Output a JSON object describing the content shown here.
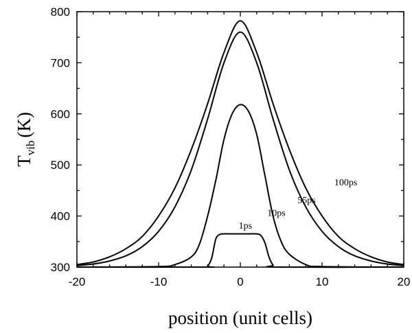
{
  "chart_data": {
    "type": "line",
    "title": "",
    "xlabel": "position (unit cells)",
    "ylabel_main": "T",
    "ylabel_sub": "vib",
    "ylabel_unit": "(K)",
    "xlim": [
      -20,
      20
    ],
    "ylim": [
      300,
      800
    ],
    "xticks": [
      -20,
      -10,
      0,
      10,
      20
    ],
    "yticks": [
      300,
      400,
      500,
      600,
      700,
      800
    ],
    "grid": false,
    "series": [
      {
        "name": "1ps",
        "x": [
          -20,
          -4.5,
          -4,
          -3.5,
          -3,
          -2.5,
          -2,
          -1,
          0,
          1,
          2,
          2.5,
          3,
          3.5,
          4,
          4.5,
          20
        ],
        "y": [
          300,
          300,
          302,
          318,
          355,
          364,
          365,
          365,
          365,
          365,
          365,
          362,
          348,
          320,
          304,
          300,
          300
        ]
      },
      {
        "name": "10ps",
        "x": [
          -20,
          -10,
          -8,
          -6,
          -5,
          -4,
          -3,
          -2,
          -1,
          0,
          1,
          2,
          3,
          4,
          5,
          6,
          8,
          10,
          20
        ],
        "y": [
          300,
          301,
          305,
          320,
          345,
          400,
          470,
          550,
          600,
          618,
          605,
          560,
          480,
          400,
          350,
          325,
          305,
          301,
          300
        ]
      },
      {
        "name": "55ps",
        "x": [
          -20,
          -18,
          -16,
          -14,
          -12,
          -10,
          -8,
          -6,
          -4,
          -2,
          0,
          2,
          4,
          6,
          8,
          10,
          12,
          14,
          16,
          18,
          20
        ],
        "y": [
          303,
          306,
          312,
          322,
          340,
          370,
          418,
          490,
          590,
          700,
          760,
          700,
          590,
          490,
          418,
          370,
          340,
          322,
          312,
          306,
          303
        ]
      },
      {
        "name": "100ps",
        "x": [
          -20,
          -18,
          -16,
          -14,
          -12,
          -10,
          -8,
          -6,
          -4,
          -2,
          0,
          2,
          4,
          6,
          8,
          10,
          12,
          14,
          16,
          18,
          20
        ],
        "y": [
          305,
          310,
          320,
          336,
          360,
          400,
          455,
          530,
          620,
          720,
          782,
          720,
          620,
          530,
          455,
          400,
          360,
          336,
          320,
          310,
          305
        ]
      }
    ],
    "annotations": [
      {
        "text": "1ps",
        "x": -0.2,
        "y": 375
      },
      {
        "text": "10ps",
        "x": 3.3,
        "y": 400
      },
      {
        "text": "55ps",
        "x": 7.0,
        "y": 425
      },
      {
        "text": "100ps",
        "x": 11.5,
        "y": 460
      }
    ]
  }
}
